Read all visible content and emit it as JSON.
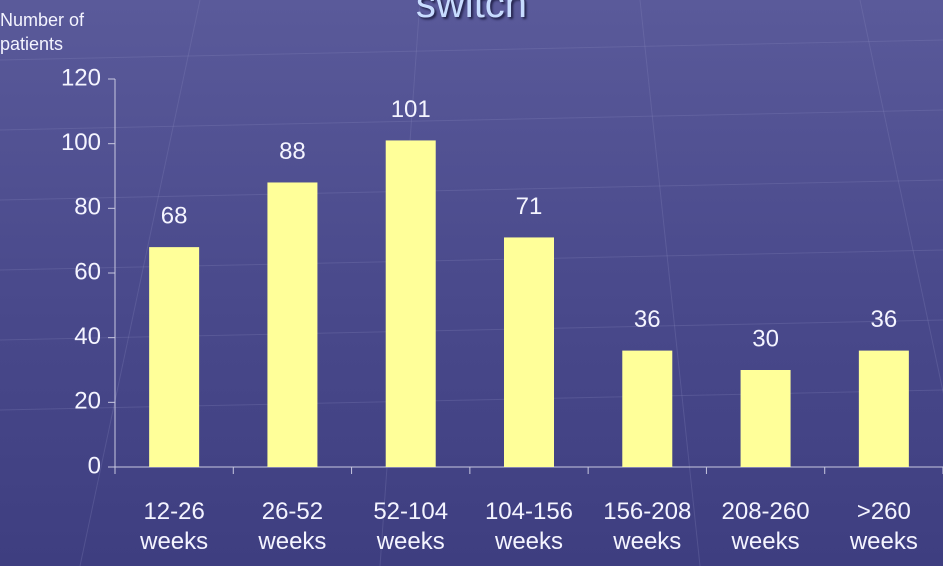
{
  "chart_data": {
    "type": "bar",
    "title": "switch",
    "y_axis_label": "Number of patients",
    "categories": [
      "12-26 weeks",
      "26-52 weeks",
      "52-104 weeks",
      "104-156 weeks",
      "156-208 weeks",
      "208-260 weeks",
      ">260 weeks"
    ],
    "values": [
      68,
      88,
      101,
      71,
      36,
      30,
      36
    ],
    "color": "#ffff99",
    "ylim": [
      0,
      120
    ],
    "yticks": [
      0,
      20,
      40,
      60,
      80,
      100,
      120
    ],
    "grid": false
  }
}
